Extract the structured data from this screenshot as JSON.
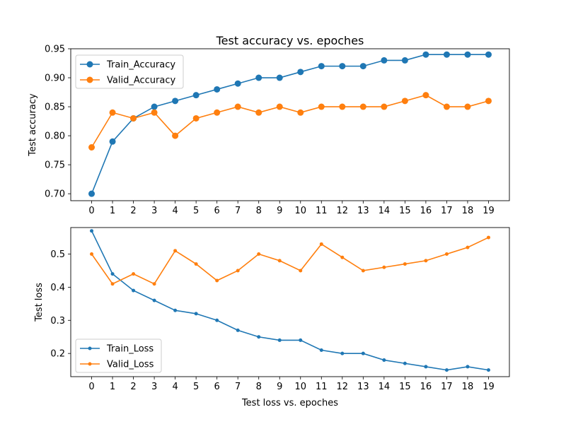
{
  "chart_data": [
    {
      "type": "line",
      "title": "Test accuracy vs. epoches",
      "xlabel": "",
      "ylabel": "Test accuracy",
      "x": [
        0,
        1,
        2,
        3,
        4,
        5,
        6,
        7,
        8,
        9,
        10,
        11,
        12,
        13,
        14,
        15,
        16,
        17,
        18,
        19
      ],
      "xlim": [
        -1,
        20
      ],
      "ylim": [
        0.688,
        0.95
      ],
      "yticks": [
        0.7,
        0.75,
        0.8,
        0.85,
        0.9,
        0.95
      ],
      "ytick_labels": [
        "0.70",
        "0.75",
        "0.80",
        "0.85",
        "0.90",
        "0.95"
      ],
      "grid": false,
      "legend_position": "upper left",
      "series": [
        {
          "name": "Train_Accuracy",
          "color": "#1f77b4",
          "marker": "circle-large",
          "values": [
            0.7,
            0.79,
            0.83,
            0.85,
            0.86,
            0.87,
            0.88,
            0.89,
            0.9,
            0.9,
            0.91,
            0.92,
            0.92,
            0.92,
            0.93,
            0.93,
            0.94,
            0.94,
            0.94,
            0.94
          ]
        },
        {
          "name": "Valid_Accuracy",
          "color": "#ff7f0e",
          "marker": "circle-large",
          "values": [
            0.78,
            0.84,
            0.83,
            0.84,
            0.8,
            0.83,
            0.84,
            0.85,
            0.84,
            0.85,
            0.84,
            0.85,
            0.85,
            0.85,
            0.85,
            0.86,
            0.87,
            0.85,
            0.85,
            0.86
          ]
        }
      ]
    },
    {
      "type": "line",
      "title": "",
      "xlabel": "Test loss vs. epoches",
      "ylabel": "Test loss",
      "x": [
        0,
        1,
        2,
        3,
        4,
        5,
        6,
        7,
        8,
        9,
        10,
        11,
        12,
        13,
        14,
        15,
        16,
        17,
        18,
        19
      ],
      "xlim": [
        -1,
        20
      ],
      "ylim": [
        0.13,
        0.58
      ],
      "yticks": [
        0.2,
        0.3,
        0.4,
        0.5
      ],
      "ytick_labels": [
        "0.2",
        "0.3",
        "0.4",
        "0.5"
      ],
      "grid": false,
      "legend_position": "lower left",
      "series": [
        {
          "name": "Train_Loss",
          "color": "#1f77b4",
          "marker": "point-small",
          "values": [
            0.57,
            0.44,
            0.39,
            0.36,
            0.33,
            0.32,
            0.3,
            0.27,
            0.25,
            0.24,
            0.24,
            0.21,
            0.2,
            0.2,
            0.18,
            0.17,
            0.16,
            0.15,
            0.16,
            0.15
          ]
        },
        {
          "name": "Valid_Loss",
          "color": "#ff7f0e",
          "marker": "point-small",
          "values": [
            0.5,
            0.41,
            0.44,
            0.41,
            0.51,
            0.47,
            0.42,
            0.45,
            0.5,
            0.48,
            0.45,
            0.53,
            0.49,
            0.45,
            0.46,
            0.47,
            0.48,
            0.5,
            0.52,
            0.55
          ]
        }
      ]
    }
  ]
}
